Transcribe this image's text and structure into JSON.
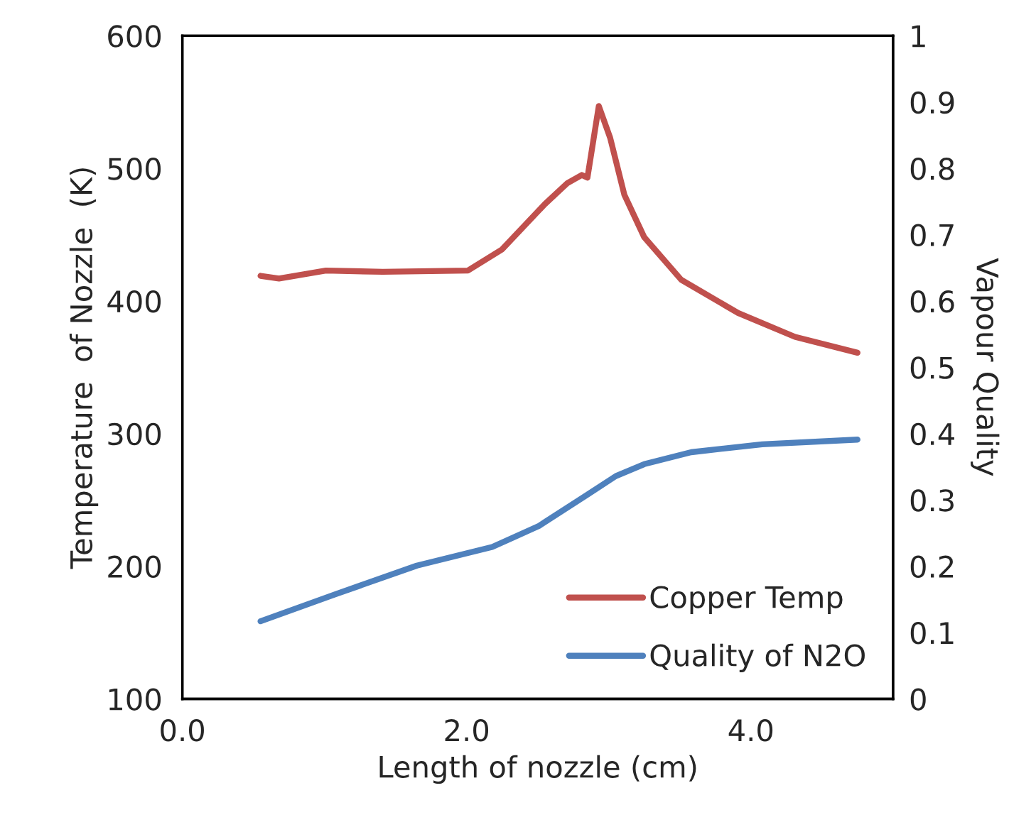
{
  "chart_data": {
    "type": "line",
    "xlabel": "Length of nozzle (cm)",
    "ylabel": "Temperature  of Nozzle  (K)",
    "y2label": "Vapour Quality",
    "xlim": [
      0,
      5
    ],
    "xticks": [
      {
        "value": 0,
        "label": "0.0"
      },
      {
        "value": 2,
        "label": "2.0"
      },
      {
        "value": 4,
        "label": "4.0"
      }
    ],
    "ylim": [
      100,
      600
    ],
    "yticks": [
      100,
      200,
      300,
      400,
      500,
      600
    ],
    "y2lim": [
      0,
      1
    ],
    "y2ticks": [
      0,
      0.1,
      0.2,
      0.3,
      0.4,
      0.5,
      0.6,
      0.7,
      0.8,
      0.9,
      1
    ],
    "grid": false,
    "legend": "bottom right",
    "marker": "none",
    "line_style": "solid",
    "series": [
      {
        "name": "Copper Temp",
        "color": "#c0504d",
        "x": [
          0.55,
          0.68,
          1.01,
          1.41,
          2.01,
          2.25,
          2.55,
          2.71,
          2.81,
          2.85,
          2.93,
          3.01,
          3.11,
          3.25,
          3.51,
          3.91,
          4.31,
          4.75
        ],
        "values": [
          419,
          417,
          423,
          422,
          423,
          439,
          473,
          489,
          495,
          493,
          547,
          523,
          480,
          448,
          416,
          391,
          373,
          361
        ]
      },
      {
        "name": "Quality of N2O",
        "color": "#4f81bd",
        "axis": "y2",
        "x": [
          0.55,
          1.08,
          1.65,
          2.18,
          2.51,
          2.85,
          3.05,
          3.25,
          3.58,
          4.08,
          4.75
        ],
        "values": [
          0.117,
          0.158,
          0.201,
          0.229,
          0.261,
          0.308,
          0.336,
          0.354,
          0.372,
          0.384,
          0.391
        ]
      }
    ]
  }
}
